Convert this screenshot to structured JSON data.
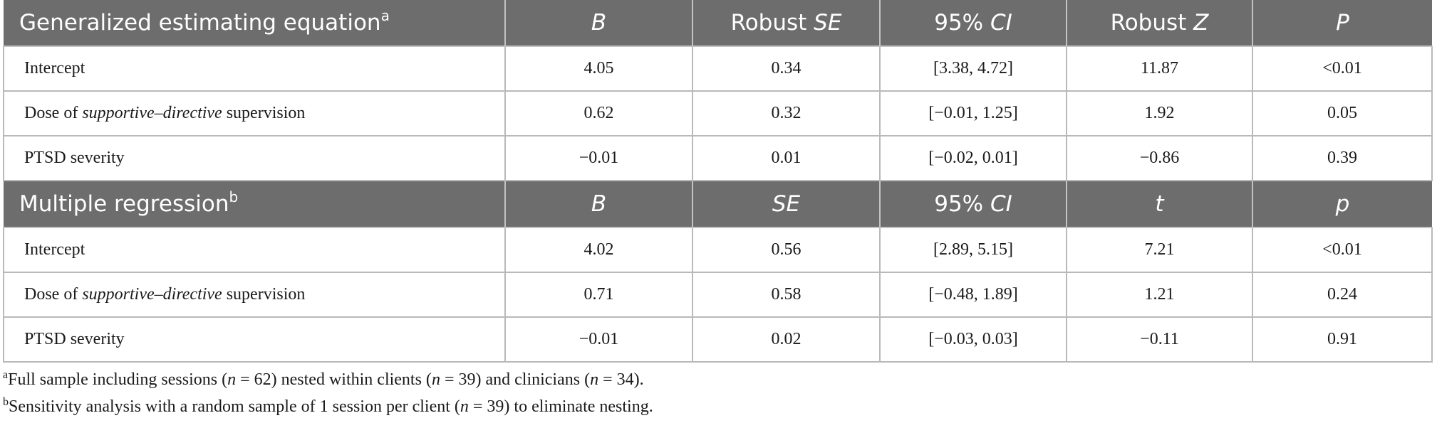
{
  "sections": [
    {
      "title": "Generalized estimating equation",
      "title_note": "a",
      "headers": {
        "b": "B",
        "se_prefix": "Robust ",
        "se_italic": "SE",
        "ci_prefix": "95% ",
        "ci_italic": "CI",
        "stat_prefix": "Robust ",
        "stat_italic": "Z",
        "p_italic": "P"
      },
      "rows": [
        {
          "label_pre": "Intercept",
          "label_italic": "",
          "label_post": "",
          "b": "4.05",
          "se": "0.34",
          "ci": "[3.38, 4.72]",
          "stat": "11.87",
          "p": "<0.01"
        },
        {
          "label_pre": "Dose of ",
          "label_italic": "supportive–directive",
          "label_post": " supervision",
          "b": "0.62",
          "se": "0.32",
          "ci": "[−0.01, 1.25]",
          "stat": "1.92",
          "p": "0.05"
        },
        {
          "label_pre": "PTSD severity",
          "label_italic": "",
          "label_post": "",
          "b": "−0.01",
          "se": "0.01",
          "ci": "[−0.02, 0.01]",
          "stat": "−0.86",
          "p": "0.39"
        }
      ]
    },
    {
      "title": "Multiple regression",
      "title_note": "b",
      "headers": {
        "b": "B",
        "se_prefix": "",
        "se_italic": "SE",
        "ci_prefix": "95% ",
        "ci_italic": "CI",
        "stat_prefix": "",
        "stat_italic": "t",
        "p_italic": "p"
      },
      "rows": [
        {
          "label_pre": "Intercept",
          "label_italic": "",
          "label_post": "",
          "b": "4.02",
          "se": "0.56",
          "ci": "[2.89, 5.15]",
          "stat": "7.21",
          "p": "<0.01"
        },
        {
          "label_pre": "Dose of ",
          "label_italic": "supportive–directive",
          "label_post": " supervision",
          "b": "0.71",
          "se": "0.58",
          "ci": "[−0.48, 1.89]",
          "stat": "1.21",
          "p": "0.24"
        },
        {
          "label_pre": "PTSD severity",
          "label_italic": "",
          "label_post": "",
          "b": "−0.01",
          "se": "0.02",
          "ci": "[−0.03, 0.03]",
          "stat": "−0.11",
          "p": "0.91"
        }
      ]
    }
  ],
  "footnotes": [
    {
      "mark": "a",
      "p1": "Full sample including sessions (",
      "v1": "n",
      "p2": " = 62) nested within clients (",
      "v2": "n",
      "p3": " = 39) and clinicians (",
      "v3": "n",
      "p4": " = 34)."
    },
    {
      "mark": "b",
      "p1": "Sensitivity analysis with a random sample of 1 session per client (",
      "v1": "n",
      "p2": " = 39) to eliminate nesting."
    }
  ]
}
